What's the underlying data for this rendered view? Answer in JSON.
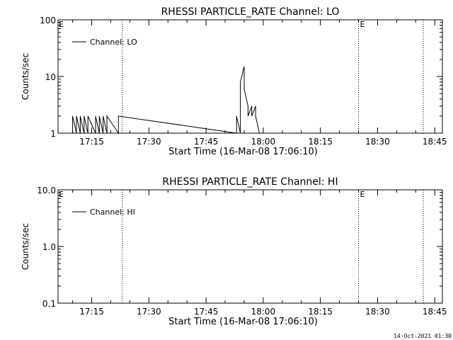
{
  "footer_timestamp": "14-Oct-2021 01:30",
  "chart_data": [
    {
      "type": "line",
      "title": "RHESSI PARTICLE_RATE Channel: LO",
      "xlabel": "Start Time (16-Mar-08 17:06:10)",
      "ylabel": "Counts/sec",
      "yscale": "log",
      "ylim": [
        1,
        100
      ],
      "yticks": [
        "1",
        "10",
        "100"
      ],
      "xticks": [
        "17:15",
        "17:30",
        "17:45",
        "18:00",
        "18:15",
        "18:30",
        "18:45"
      ],
      "legend": "Channel: LO",
      "legend_position": "top-left",
      "marker_labels": [
        "E",
        "E"
      ],
      "vertical_lines_at": [
        "17:23",
        "18:25",
        "18:42"
      ],
      "series": [
        {
          "name": "Channel: LO",
          "x": [
            "17:10",
            "17:10",
            "17:11",
            "17:11",
            "17:12",
            "17:12",
            "17:13",
            "17:13",
            "17:14",
            "17:14",
            "17:16",
            "17:16",
            "17:17",
            "17:17",
            "17:18",
            "17:18",
            "17:19",
            "17:19",
            "17:22",
            "17:22",
            "17:53",
            "17:53",
            "17:54",
            "17:54",
            "17:54",
            "17:55",
            "17:55",
            "17:56",
            "17:56",
            "17:57",
            "17:57",
            "17:58",
            "17:58",
            "17:59",
            "17:59"
          ],
          "y": [
            1,
            2,
            1,
            2,
            1,
            2,
            1,
            2,
            1,
            2,
            1,
            2,
            1,
            2,
            1,
            2,
            1,
            2,
            1,
            2,
            1,
            2,
            1,
            4,
            8,
            15,
            6,
            3,
            2,
            3,
            2,
            3,
            2,
            1,
            1
          ]
        }
      ]
    },
    {
      "type": "line",
      "title": "RHESSI PARTICLE_RATE Channel: HI",
      "xlabel": "Start Time (16-Mar-08 17:06:10)",
      "ylabel": "Counts/sec",
      "yscale": "log",
      "ylim": [
        0.1,
        10
      ],
      "yticks": [
        "0.1",
        "1.0",
        "10.0"
      ],
      "xticks": [
        "17:15",
        "17:30",
        "17:45",
        "18:00",
        "18:15",
        "18:30",
        "18:45"
      ],
      "legend": "Channel: HI",
      "legend_position": "top-left",
      "marker_labels": [
        "E",
        "E"
      ],
      "vertical_lines_at": [
        "17:23",
        "18:25",
        "18:42"
      ],
      "series": [
        {
          "name": "Channel: HI",
          "x": [],
          "y": []
        }
      ]
    }
  ]
}
